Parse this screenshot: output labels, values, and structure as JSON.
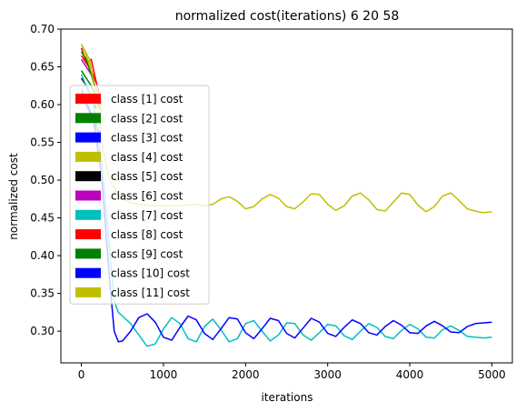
{
  "chart_data": {
    "type": "line",
    "title": "normalized cost(iterations) 6 20 58",
    "xlabel": "iterations",
    "ylabel": "normalized cost",
    "xlim": [
      -250,
      5250
    ],
    "ylim": [
      0.258,
      0.7
    ],
    "xticks": [
      0,
      1000,
      2000,
      3000,
      4000,
      5000
    ],
    "xtick_labels": [
      "0",
      "1000",
      "2000",
      "3000",
      "4000",
      "5000"
    ],
    "yticks": [
      0.3,
      0.35,
      0.4,
      0.45,
      0.5,
      0.55,
      0.6,
      0.65,
      0.7
    ],
    "ytick_labels": [
      "0.30",
      "0.35",
      "0.40",
      "0.45",
      "0.50",
      "0.55",
      "0.60",
      "0.65",
      "0.70"
    ],
    "grid": false,
    "legend_position": "left",
    "series": [
      {
        "name": "class [1] cost",
        "color": "#ff0000",
        "x": [
          0,
          60,
          120,
          180,
          250
        ],
        "y": [
          0.675,
          0.655,
          0.66,
          0.63,
          0.6
        ]
      },
      {
        "name": "class [2] cost",
        "color": "#008000",
        "x": [
          0,
          60,
          120,
          180,
          250
        ],
        "y": [
          0.645,
          0.635,
          0.625,
          0.61,
          0.59
        ]
      },
      {
        "name": "class [3] cost",
        "color": "#0000ff",
        "x": [
          0,
          60,
          120,
          180,
          250
        ],
        "y": [
          0.615,
          0.6,
          0.585,
          0.57,
          0.56
        ]
      },
      {
        "name": "class [4] cost",
        "color": "#bfbf00",
        "x": [
          0,
          100,
          200,
          250,
          300,
          350,
          400,
          450,
          500,
          600,
          700,
          800,
          900,
          1000,
          1100,
          1200,
          1300,
          1400,
          1500,
          1600,
          1700,
          1800,
          1900,
          2000,
          2100,
          2200,
          2300,
          2400,
          2500,
          2600,
          2700,
          2800,
          2900,
          3000,
          3100,
          3200,
          3300,
          3400,
          3500,
          3600,
          3700,
          3800,
          3900,
          4000,
          4100,
          4200,
          4300,
          4400,
          4500,
          4600,
          4700,
          4800,
          4900,
          5000
        ],
        "y": [
          0.68,
          0.66,
          0.6,
          0.55,
          0.52,
          0.5,
          0.49,
          0.48,
          0.475,
          0.47,
          0.468,
          0.467,
          0.466,
          0.466,
          0.466,
          0.466,
          0.467,
          0.468,
          0.466,
          0.468,
          0.475,
          0.478,
          0.472,
          0.462,
          0.465,
          0.475,
          0.481,
          0.476,
          0.465,
          0.462,
          0.471,
          0.482,
          0.481,
          0.468,
          0.46,
          0.466,
          0.479,
          0.483,
          0.474,
          0.461,
          0.459,
          0.471,
          0.483,
          0.481,
          0.467,
          0.458,
          0.465,
          0.479,
          0.483,
          0.473,
          0.462,
          0.459,
          0.457,
          0.458
        ]
      },
      {
        "name": "class [5] cost",
        "color": "#000000",
        "x": [
          0,
          60,
          120,
          180
        ],
        "y": [
          0.635,
          0.625,
          0.61,
          0.595
        ]
      },
      {
        "name": "class [6] cost",
        "color": "#bf00bf",
        "x": [
          0,
          60,
          120,
          180
        ],
        "y": [
          0.66,
          0.65,
          0.64,
          0.63
        ]
      },
      {
        "name": "class [7] cost",
        "color": "#00bfbf",
        "x": [
          0,
          150,
          250,
          350,
          400,
          450,
          500,
          600,
          700,
          800,
          900,
          1000,
          1100,
          1200,
          1300,
          1400,
          1500,
          1600,
          1700,
          1800,
          1900,
          2000,
          2100,
          2200,
          2300,
          2400,
          2500,
          2600,
          2700,
          2800,
          2900,
          3000,
          3100,
          3200,
          3300,
          3400,
          3500,
          3600,
          3700,
          3800,
          3900,
          4000,
          4100,
          4200,
          4300,
          4400,
          4500,
          4600,
          4700,
          4800,
          4900,
          5000
        ],
        "y": [
          0.64,
          0.6,
          0.52,
          0.4,
          0.34,
          0.325,
          0.32,
          0.31,
          0.295,
          0.28,
          0.283,
          0.303,
          0.318,
          0.31,
          0.29,
          0.286,
          0.306,
          0.316,
          0.302,
          0.286,
          0.29,
          0.31,
          0.314,
          0.3,
          0.287,
          0.295,
          0.311,
          0.31,
          0.295,
          0.288,
          0.298,
          0.309,
          0.307,
          0.294,
          0.289,
          0.3,
          0.31,
          0.305,
          0.293,
          0.29,
          0.301,
          0.309,
          0.303,
          0.292,
          0.291,
          0.302,
          0.307,
          0.301,
          0.293,
          0.292,
          0.291,
          0.292
        ]
      },
      {
        "name": "class [8] cost",
        "color": "#ff0000",
        "x": [
          0,
          60,
          120,
          180
        ],
        "y": [
          0.665,
          0.655,
          0.645,
          0.63
        ]
      },
      {
        "name": "class [9] cost",
        "color": "#008000",
        "x": [
          0,
          60,
          120,
          180
        ],
        "y": [
          0.67,
          0.66,
          0.64,
          0.62
        ]
      },
      {
        "name": "class [10] cost",
        "color": "#0000ff",
        "x": [
          0,
          150,
          250,
          350,
          400,
          450,
          500,
          600,
          700,
          800,
          900,
          1000,
          1100,
          1200,
          1300,
          1400,
          1500,
          1600,
          1700,
          1800,
          1900,
          2000,
          2100,
          2200,
          2300,
          2400,
          2500,
          2600,
          2700,
          2800,
          2900,
          3000,
          3100,
          3200,
          3300,
          3400,
          3500,
          3600,
          3700,
          3800,
          3900,
          4000,
          4100,
          4200,
          4300,
          4400,
          4500,
          4600,
          4700,
          4800,
          4900,
          5000
        ],
        "y": [
          0.62,
          0.58,
          0.5,
          0.36,
          0.3,
          0.286,
          0.287,
          0.3,
          0.318,
          0.323,
          0.312,
          0.292,
          0.288,
          0.305,
          0.32,
          0.315,
          0.297,
          0.289,
          0.303,
          0.318,
          0.316,
          0.298,
          0.29,
          0.303,
          0.317,
          0.314,
          0.297,
          0.291,
          0.304,
          0.317,
          0.312,
          0.297,
          0.293,
          0.305,
          0.315,
          0.31,
          0.298,
          0.295,
          0.306,
          0.314,
          0.308,
          0.298,
          0.297,
          0.307,
          0.313,
          0.307,
          0.299,
          0.298,
          0.306,
          0.31,
          0.311,
          0.312
        ]
      },
      {
        "name": "class [11] cost",
        "color": "#bfbf00",
        "x": [
          0,
          60,
          120,
          180,
          250
        ],
        "y": [
          0.68,
          0.665,
          0.645,
          0.62,
          0.59
        ]
      }
    ]
  }
}
